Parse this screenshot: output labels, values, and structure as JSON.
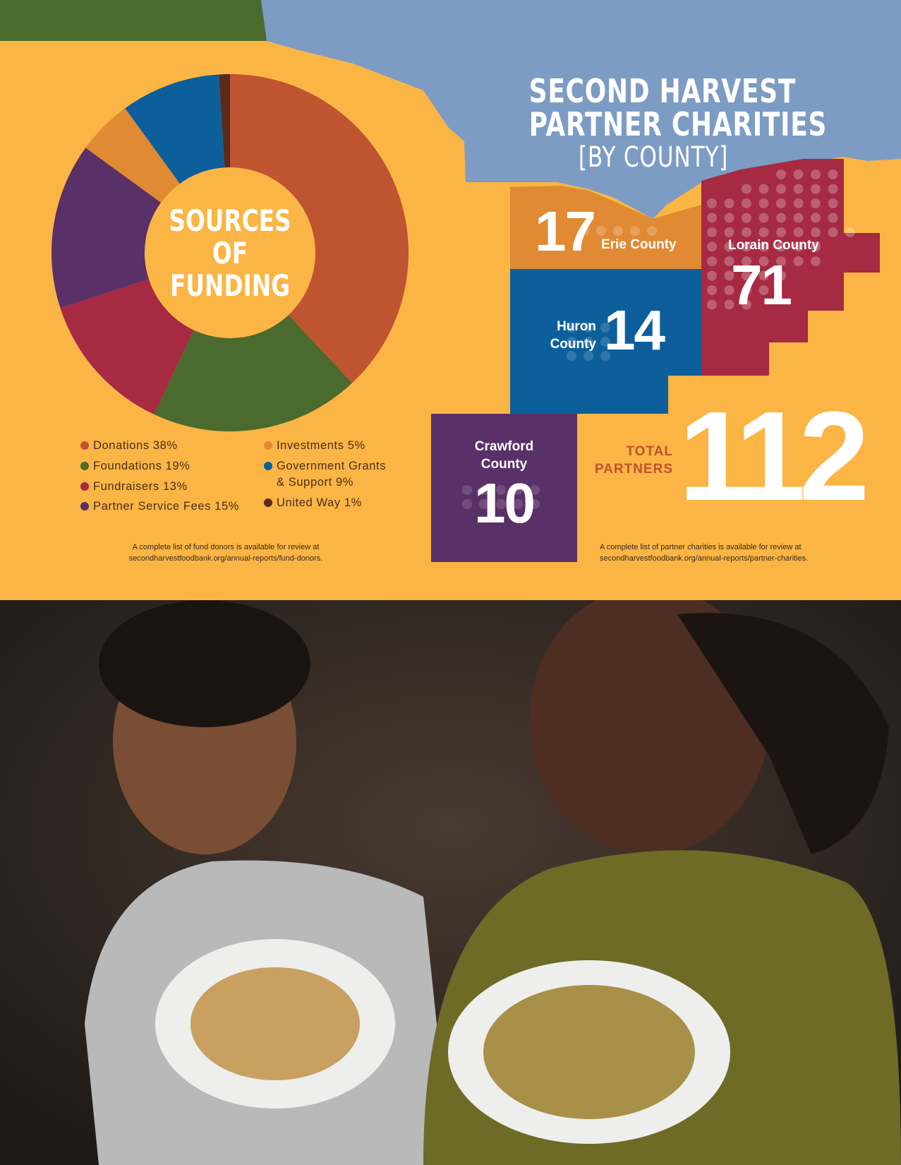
{
  "colors": {
    "background": "#fbb545",
    "sky": "#7d9cc4",
    "top_band": "#4b6a2e",
    "erie": "#e08a33",
    "huron": "#0c5f9b",
    "lorain": "#a52a42",
    "crawford": "#5a3068",
    "total_label": "#c0522c"
  },
  "funding": {
    "center_title": [
      "SOURCES",
      "OF",
      "FUNDING"
    ],
    "legend_left": [
      "Donations 38%",
      "Foundations 19%",
      "Fundraisers 13%",
      "Partner Service Fees 15%"
    ],
    "legend_right": [
      "Investments 5%",
      "Government Grants",
      "& Support 9%",
      "United Way 1%"
    ],
    "note": [
      "A complete list of fund donors is available for review at",
      "secondharvestfoodbank.org/annual-reports/fund-donors."
    ]
  },
  "chart_data": {
    "type": "pie",
    "style": "donut",
    "title": "SOURCES OF FUNDING",
    "categories": [
      "Donations",
      "Foundations",
      "Fundraisers",
      "Partner Service Fees",
      "Investments",
      "Government Grants & Support",
      "United Way"
    ],
    "values": [
      38,
      19,
      13,
      15,
      5,
      9,
      1
    ],
    "unit": "%",
    "colors": [
      "#bf5430",
      "#4b6a2e",
      "#a52a42",
      "#5a3068",
      "#e08a33",
      "#0c5f9b",
      "#5a2a1a"
    ],
    "legend": "bottom"
  },
  "charities": {
    "title": [
      "SECOND HARVEST",
      "PARTNER CHARITIES",
      "[BY COUNTY]"
    ],
    "counties": [
      {
        "name": "Erie County",
        "count": "17"
      },
      {
        "name_lines": [
          "Huron",
          "County"
        ],
        "count": "14"
      },
      {
        "name": "Lorain County",
        "count": "71"
      },
      {
        "name_lines": [
          "Crawford",
          "County"
        ],
        "count": "10"
      }
    ],
    "total_label": [
      "TOTAL",
      "PARTNERS"
    ],
    "total": "112",
    "note": [
      "A complete list of partner charities is available for review at",
      "secondharvestfoodbank.org/annual-reports/partner-charities."
    ]
  }
}
